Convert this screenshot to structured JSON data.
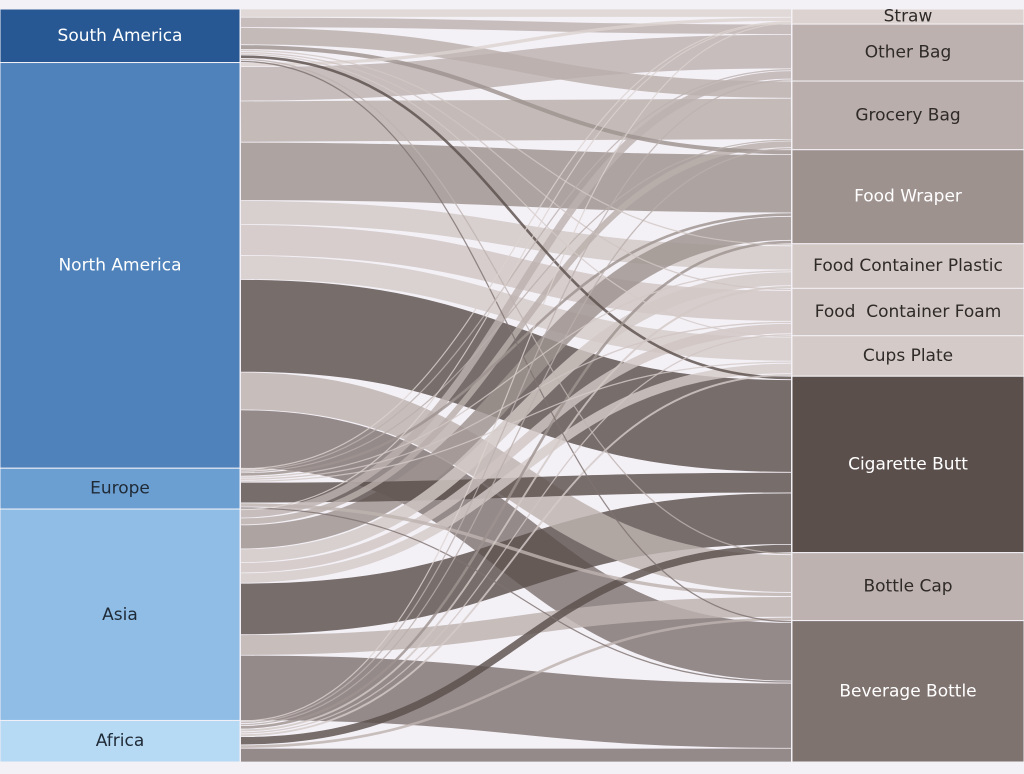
{
  "chart_data": {
    "type": "sankey",
    "sources": [
      {
        "name": "South America",
        "color": "#275893",
        "text": "#ffffff"
      },
      {
        "name": "North America",
        "color": "#4f82ba",
        "text": "#ffffff"
      },
      {
        "name": "Europe",
        "color": "#6c9fd1",
        "text": "#1f2a36"
      },
      {
        "name": "Asia",
        "color": "#8fbde6",
        "text": "#1f2a36"
      },
      {
        "name": "Africa",
        "color": "#b6d9f4",
        "text": "#1f2a36"
      }
    ],
    "targets": [
      {
        "name": "Straw",
        "color": "#dcd3d0",
        "text": "#2e2a28"
      },
      {
        "name": "Other Bag",
        "color": "#bcb1ae",
        "text": "#2e2a28"
      },
      {
        "name": "Grocery Bag",
        "color": "#b9aeab",
        "text": "#2e2a28"
      },
      {
        "name": "Food Wraper",
        "color": "#9e928f",
        "text": "#ffffff"
      },
      {
        "name": "Food Container Plastic",
        "color": "#d2c8c5",
        "text": "#2e2a28"
      },
      {
        "name": "Food  Container Foam",
        "color": "#cfc5c2",
        "text": "#2e2a28"
      },
      {
        "name": "Cups Plate",
        "color": "#d4cbc8",
        "text": "#2e2a28"
      },
      {
        "name": "Cigarette Butt",
        "color": "#5b4f4c",
        "text": "#ffffff"
      },
      {
        "name": "Bottle Cap",
        "color": "#bdb2af",
        "text": "#2e2a28"
      },
      {
        "name": "Beverage Bottle",
        "color": "#7f7370",
        "text": "#ffffff"
      }
    ],
    "flows": [
      [
        1.2,
        1.5,
        2.5,
        0.7,
        0.3,
        0.3,
        0.2,
        0.5,
        0.3,
        0.3
      ],
      [
        0.6,
        5.0,
        6.0,
        8.5,
        3.5,
        4.5,
        3.5,
        13.5,
        5.5,
        8.5
      ],
      [
        0.15,
        0.3,
        0.2,
        0.5,
        0.3,
        0.3,
        0.3,
        3.0,
        0.6,
        0.3
      ],
      [
        0.1,
        1.2,
        1.0,
        3.5,
        2.0,
        1.5,
        1.5,
        7.5,
        3.0,
        9.5
      ],
      [
        0.15,
        0.3,
        0.3,
        0.5,
        0.4,
        0.3,
        0.4,
        1.2,
        0.5,
        2.0
      ]
    ]
  }
}
